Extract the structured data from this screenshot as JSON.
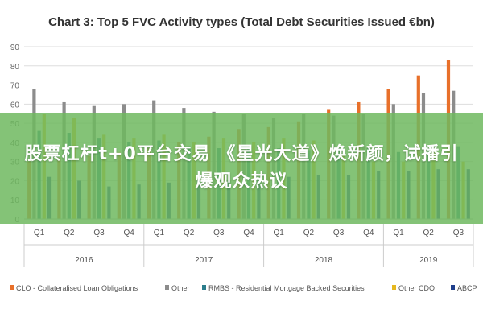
{
  "chart_data": {
    "type": "bar",
    "title": "Chart 3: Top 5 FVC Activity types (Total Debt Securities Issued €bn)",
    "ylim": [
      0,
      90
    ],
    "yticks": [
      0,
      10,
      20,
      30,
      40,
      50,
      60,
      70,
      80,
      90
    ],
    "categories": [
      "Q1",
      "Q2",
      "Q3",
      "Q4",
      "Q1",
      "Q2",
      "Q3",
      "Q4",
      "Q1",
      "Q2",
      "Q3",
      "Q4",
      "Q1",
      "Q2",
      "Q3"
    ],
    "years": [
      {
        "label": "2016",
        "span": 4
      },
      {
        "label": "2017",
        "span": 4
      },
      {
        "label": "2018",
        "span": 4
      },
      {
        "label": "2019",
        "span": 3
      }
    ],
    "series": [
      {
        "name": "CLO - Collateralised Loan Obligations",
        "color": "#e8702a",
        "values": [
          30,
          32,
          33,
          35,
          37,
          40,
          43,
          47,
          48,
          51,
          57,
          61,
          68,
          75,
          83
        ]
      },
      {
        "name": "Other",
        "color": "#8c8c8c",
        "values": [
          68,
          61,
          59,
          60,
          62,
          58,
          56,
          55,
          53,
          55,
          54,
          55,
          60,
          66,
          67
        ]
      },
      {
        "name": "RMBS - Residential Mortgage Backed Securities",
        "color": "#2b7d8c",
        "values": [
          46,
          45,
          42,
          40,
          41,
          38,
          37,
          37,
          37,
          36,
          37,
          37,
          35,
          36,
          38
        ]
      },
      {
        "name": "Other CDO",
        "color": "#e6b81f",
        "values": [
          55,
          53,
          44,
          42,
          44,
          40,
          42,
          40,
          42,
          41,
          33,
          30,
          30,
          35,
          30
        ]
      },
      {
        "name": "ABCP",
        "color": "#1f3f8c",
        "values": [
          22,
          20,
          17,
          18,
          19,
          20,
          20,
          21,
          22,
          23,
          23,
          25,
          25,
          26,
          26
        ]
      }
    ],
    "legend_position": "bottom",
    "grid": true
  },
  "overlay": {
    "banner_text": "股票杠杆t+0平台交易 《星光大道》焕新颜，试播引爆观众热议"
  }
}
